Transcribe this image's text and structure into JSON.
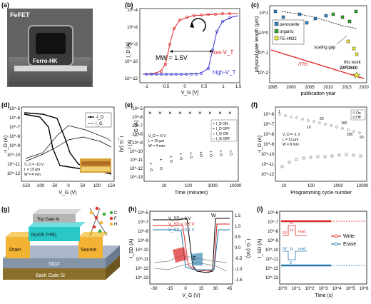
{
  "figure": {
    "panels": [
      {
        "id": "a",
        "label": "(a)",
        "type": "micrograph",
        "texts": {
          "title": "FeFET",
          "layer": "Ferro-HK"
        }
      },
      {
        "id": "b",
        "label": "(b)",
        "type": "line",
        "xlabel": "V_G [V]",
        "ylabel": "I_D [A]",
        "xticks": [
          "-1",
          "-0.5",
          "0",
          "0.5",
          "1",
          "1.5"
        ],
        "yticks": [
          "10^-4",
          "10^-6",
          "10^-8",
          "10^-10",
          "10^-12"
        ],
        "annotation": "MW = 1.5V",
        "legend": [
          "low-V_T",
          "high-V_T"
        ]
      },
      {
        "id": "c",
        "label": "(c)",
        "type": "scatter",
        "xlabel": "publication year",
        "ylabel": "physical gate length (µm)",
        "xticks": [
          "1995",
          "2000",
          "2005",
          "2010",
          "2015",
          "2020"
        ],
        "yticks": [
          "10^1",
          "10^0",
          "10^-1",
          "10^-2"
        ],
        "legend": [
          "perovskite",
          "organic",
          "FE-HfO2"
        ],
        "annotations": [
          "scaling gap",
          "ITRS",
          "this work",
          "22FDSOI"
        ]
      },
      {
        "id": "d",
        "label": "(d)",
        "type": "line",
        "xlabel": "V_G (V)",
        "ylabel": "-I_D (A)",
        "y2label": "I_G (A)",
        "xticks": [
          "-150",
          "-100",
          "-50",
          "0",
          "50",
          "100",
          "150"
        ],
        "yticks": [
          "10^-5",
          "10^-6",
          "10^-7",
          "10^-8",
          "10^-9",
          "10^-10",
          "10^-11",
          "10^-12"
        ],
        "legend": [
          "-I_D",
          "I_G"
        ],
        "params": [
          "V_D = -10 V",
          "L = 15 µm",
          "W = 4 mm"
        ]
      },
      {
        "id": "e",
        "label": "(e)",
        "type": "scatter",
        "xlabel": "Time (minutes)",
        "ylabel": "I (A)",
        "y2label": "I_G (A)",
        "xticks": [
          "10",
          "100",
          "1000",
          "10000"
        ],
        "yticks": [
          "10^-5",
          "10^-6",
          "10^-7",
          "10^-8",
          "10^-9",
          "10^-10",
          "10^-11",
          "10^-12",
          "10^-13"
        ],
        "legend": [
          "I_D ON",
          "I_D OFF",
          "I_G ON",
          "I_G OFF"
        ],
        "params": [
          "V_D = -5 V",
          "L = 15 µm",
          "W = 4 mm"
        ]
      },
      {
        "id": "f",
        "label": "(f)",
        "type": "scatter",
        "xlabel": "Programming cycle number",
        "ylabel": "-I_D (A)",
        "xticks": [
          "10",
          "100",
          "1000",
          "10000"
        ],
        "yticks": [
          "10^-6",
          "10^-7",
          "10^-8",
          "10^-9",
          "10^-10",
          "10^-11",
          "10^-12"
        ],
        "legend": [
          "On",
          "Off"
        ],
        "points_labels": [
          "1",
          "10",
          "20",
          "100",
          "200",
          "50"
        ],
        "params": [
          "V_D = -1 V",
          "L = 12 µm",
          "W = 8 mm"
        ]
      },
      {
        "id": "g",
        "label": "(g)",
        "type": "schematic",
        "texts": {
          "top_gate": "Top Gate Al",
          "pvdf": "P(VDF-TrFE)",
          "drain": "Drain",
          "source": "Source",
          "sio2": "SiO2",
          "back_gate": "Back Gate Si",
          "legend_c": "C",
          "legend_f": "F",
          "legend_h": "H"
        }
      },
      {
        "id": "h",
        "label": "(h)",
        "type": "line",
        "xlabel": "V_G (V)",
        "ylabel": "I_SD (A)",
        "y2label": "I_G (nA)",
        "xticks": [
          "-30",
          "-15",
          "0",
          "15",
          "30",
          "45"
        ],
        "yticks": [
          "10^-5",
          "10^-7",
          "10^-8",
          "10^-9",
          "10^-10",
          "10^-11",
          "10^-12",
          "10^-13"
        ],
        "y2ticks": [
          "1.5",
          "1.0",
          "0.5",
          "0.0",
          "-0.5",
          "-1.0",
          "-1.5"
        ],
        "legend": [
          "V_SD = 1 V",
          "V_SD = 0.5 V",
          "V_SD = 0.1 V"
        ],
        "marks": [
          "W",
          "E"
        ]
      },
      {
        "id": "i",
        "label": "(i)",
        "type": "line",
        "xlabel": "Time (s)",
        "ylabel": "I_SD (A)",
        "xticks": [
          "10^0",
          "10^1",
          "10^2",
          "10^3",
          "10^4",
          "10^5",
          "10^6"
        ],
        "yticks": [
          "10^-6",
          "10^-7",
          "10^-8",
          "10^-9",
          "10^-10",
          "10^-11",
          "10^-12",
          "10^-13"
        ],
        "legend": [
          "Write",
          "Erase"
        ],
        "pulse_write": [
          "0V",
          "1s",
          "read",
          "W"
        ],
        "pulse_erase": [
          "0V",
          "1s",
          "read",
          "E"
        ]
      }
    ]
  }
}
